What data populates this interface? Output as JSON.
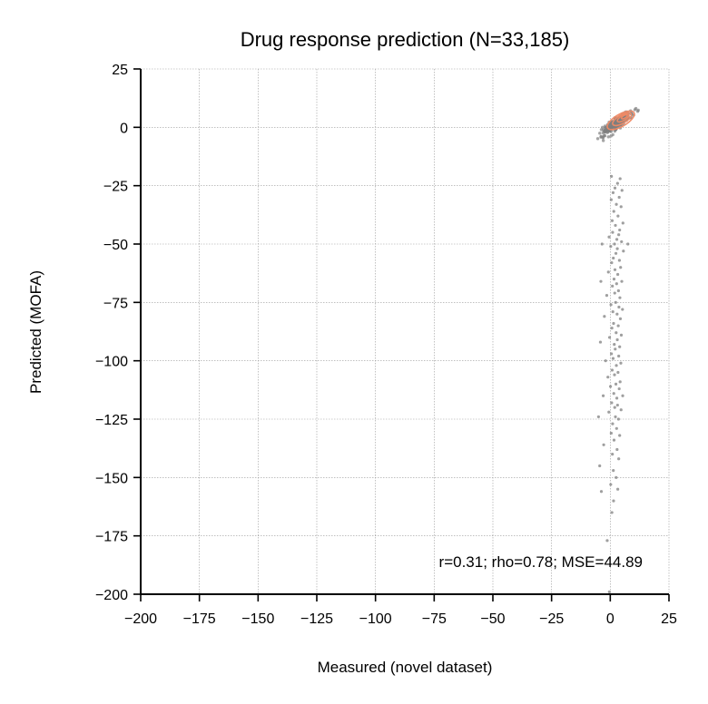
{
  "chart_data": {
    "type": "scatter",
    "title": "Drug response prediction (N=33,185)",
    "xlabel": "Measured (novel dataset)",
    "ylabel": "Predicted (MOFA)",
    "xlim": [
      -200,
      25
    ],
    "ylim": [
      -200,
      25
    ],
    "xticks": [
      "−200",
      "−175",
      "−150",
      "−125",
      "−100",
      "−75",
      "−50",
      "−25",
      "0",
      "25"
    ],
    "yticks": [
      "25",
      "0",
      "−25",
      "−50",
      "−75",
      "−100",
      "−125",
      "−150",
      "−175",
      "−200"
    ],
    "grid": true,
    "annotation": "r=0.31; rho=0.78; MSE=44.89",
    "point_color": "#7f7f7f",
    "density_color": "#f08a65",
    "points": [
      [
        0.5,
        -21
      ],
      [
        4.2,
        -22
      ],
      [
        3.1,
        -24
      ],
      [
        2.0,
        -26
      ],
      [
        5.0,
        -27
      ],
      [
        1.2,
        -28
      ],
      [
        3.8,
        -30
      ],
      [
        0.4,
        -31
      ],
      [
        2.6,
        -33
      ],
      [
        4.6,
        -34
      ],
      [
        1.5,
        -36
      ],
      [
        3.3,
        -38
      ],
      [
        0.8,
        -40
      ],
      [
        5.4,
        -41
      ],
      [
        2.2,
        -42
      ],
      [
        4.0,
        -44
      ],
      [
        1.0,
        -45
      ],
      [
        3.6,
        -46
      ],
      [
        -0.5,
        -47
      ],
      [
        2.8,
        -48
      ],
      [
        4.8,
        -49
      ],
      [
        1.8,
        -50
      ],
      [
        0.2,
        -51
      ],
      [
        3.0,
        -52
      ],
      [
        7.5,
        -50
      ],
      [
        -3.5,
        -50
      ],
      [
        5.6,
        -53
      ],
      [
        2.4,
        -54
      ],
      [
        1.3,
        -56
      ],
      [
        3.9,
        -57
      ],
      [
        0.6,
        -58
      ],
      [
        4.4,
        -60
      ],
      [
        2.0,
        -61
      ],
      [
        -0.8,
        -62
      ],
      [
        3.2,
        -63
      ],
      [
        1.6,
        -65
      ],
      [
        4.9,
        -66
      ],
      [
        2.7,
        -67
      ],
      [
        -4.0,
        -66
      ],
      [
        0.9,
        -68
      ],
      [
        3.5,
        -70
      ],
      [
        1.9,
        -71
      ],
      [
        -1.5,
        -72
      ],
      [
        4.1,
        -73
      ],
      [
        2.3,
        -75
      ],
      [
        0.3,
        -76
      ],
      [
        3.7,
        -77
      ],
      [
        1.1,
        -79
      ],
      [
        5.2,
        -78
      ],
      [
        2.9,
        -80
      ],
      [
        -2.5,
        -81
      ],
      [
        4.3,
        -82
      ],
      [
        1.4,
        -84
      ],
      [
        3.4,
        -85
      ],
      [
        0.7,
        -86
      ],
      [
        2.5,
        -88
      ],
      [
        4.7,
        -89
      ],
      [
        -0.3,
        -90
      ],
      [
        3.0,
        -91
      ],
      [
        1.7,
        -93
      ],
      [
        -4.2,
        -92
      ],
      [
        4.0,
        -94
      ],
      [
        2.1,
        -95
      ],
      [
        0.5,
        -97
      ],
      [
        3.6,
        -98
      ],
      [
        1.2,
        -99
      ],
      [
        -2.0,
        -100
      ],
      [
        4.5,
        -101
      ],
      [
        2.6,
        -102
      ],
      [
        0.8,
        -104
      ],
      [
        3.3,
        -105
      ],
      [
        1.8,
        -106
      ],
      [
        -1.0,
        -107
      ],
      [
        4.2,
        -109
      ],
      [
        2.4,
        -110
      ],
      [
        0.1,
        -111
      ],
      [
        3.8,
        -112
      ],
      [
        1.5,
        -114
      ],
      [
        5.3,
        -115
      ],
      [
        2.8,
        -116
      ],
      [
        -3.0,
        -115
      ],
      [
        0.6,
        -118
      ],
      [
        3.1,
        -119
      ],
      [
        1.9,
        -120
      ],
      [
        4.6,
        -121
      ],
      [
        -0.6,
        -122
      ],
      [
        2.2,
        -124
      ],
      [
        -5.0,
        -124
      ],
      [
        3.5,
        -125
      ],
      [
        1.0,
        -127
      ],
      [
        2.7,
        -129
      ],
      [
        0.4,
        -131
      ],
      [
        4.0,
        -132
      ],
      [
        1.6,
        -134
      ],
      [
        -2.8,
        -136
      ],
      [
        2.9,
        -138
      ],
      [
        0.9,
        -140
      ],
      [
        3.6,
        -142
      ],
      [
        -4.5,
        -145
      ],
      [
        1.3,
        -147
      ],
      [
        2.5,
        -150
      ],
      [
        0.2,
        -153
      ],
      [
        3.2,
        -155
      ],
      [
        -3.8,
        -156
      ],
      [
        1.4,
        -160
      ],
      [
        0.7,
        -165
      ],
      [
        -1.3,
        -177
      ],
      [
        -0.4,
        -199
      ]
    ],
    "core_cluster": {
      "center": [
        3,
        2
      ],
      "spread": [
        7,
        6
      ],
      "count": 260
    },
    "density_contours": [
      {
        "cx": 4.5,
        "cy": 3.0,
        "rx": 6.5,
        "ry": 2.6,
        "angle_deg": 30
      },
      {
        "cx": 5.0,
        "cy": 3.5,
        "rx": 4.5,
        "ry": 1.8,
        "angle_deg": 30
      },
      {
        "cx": 5.5,
        "cy": 4.0,
        "rx": 2.8,
        "ry": 1.1,
        "angle_deg": 30
      },
      {
        "cx": 6.0,
        "cy": 4.5,
        "rx": 1.4,
        "ry": 0.6,
        "angle_deg": 30
      }
    ]
  }
}
